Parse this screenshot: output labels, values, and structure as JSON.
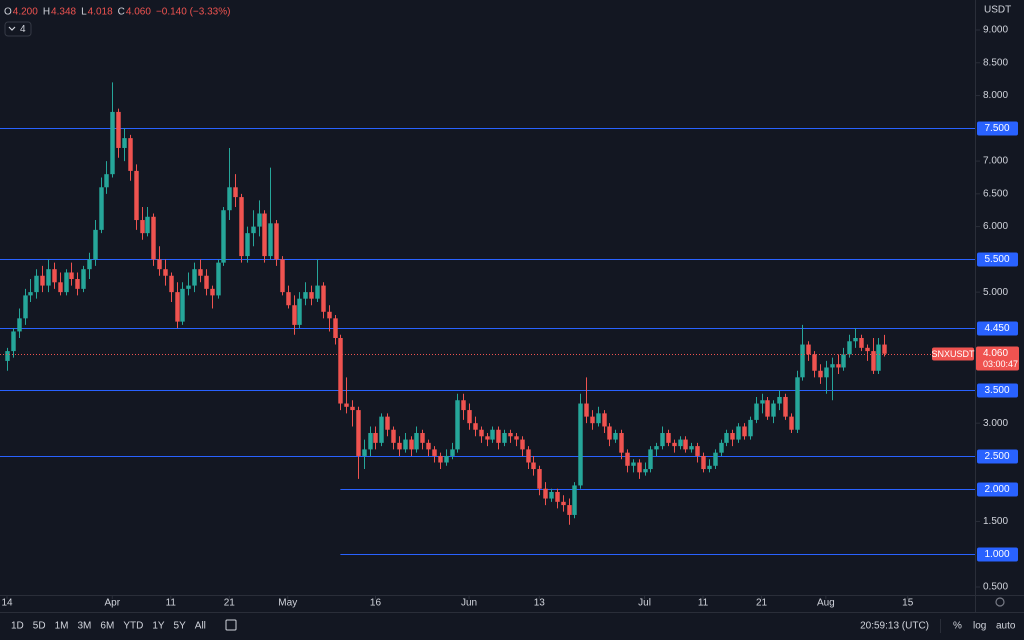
{
  "chart_data": {
    "type": "candlestick",
    "symbol": "SNXUSDT",
    "currency": "USDT",
    "up_color": "#26a69a",
    "down_color": "#ef5350",
    "line_color": "#2962ff",
    "legend": {
      "o_label": "O",
      "o": "4.200",
      "h_label": "H",
      "h": "4.348",
      "l_label": "L",
      "l": "4.018",
      "c_label": "C",
      "c": "4.060",
      "change": "−0.140 (−3.33%)",
      "indicators": "4"
    },
    "last_price_label": "4.060",
    "countdown": "03:00:47",
    "xlim": [
      -1.2,
      165.5
    ],
    "ylim": [
      0.378,
      9.458
    ],
    "yticks": [
      {
        "value": 9,
        "label": "9.000"
      },
      {
        "value": 8.5,
        "label": "8.500"
      },
      {
        "value": 8,
        "label": "8.000"
      },
      {
        "value": 7,
        "label": "7.000"
      },
      {
        "value": 6.5,
        "label": "6.500"
      },
      {
        "value": 6,
        "label": "6.000"
      },
      {
        "value": 5,
        "label": "5.000"
      },
      {
        "value": 3,
        "label": "3.000"
      },
      {
        "value": 1.5,
        "label": "1.500"
      },
      {
        "value": 0.5,
        "label": "0.500"
      }
    ],
    "xticks": [
      {
        "value": 0,
        "label": "14"
      },
      {
        "value": 18,
        "label": "Apr"
      },
      {
        "value": 28,
        "label": "11"
      },
      {
        "value": 38,
        "label": "21"
      },
      {
        "value": 48,
        "label": "May"
      },
      {
        "value": 63,
        "label": "16"
      },
      {
        "value": 79,
        "label": "Jun"
      },
      {
        "value": 91,
        "label": "13"
      },
      {
        "value": 109,
        "label": "Jul"
      },
      {
        "value": 119,
        "label": "11"
      },
      {
        "value": 129,
        "label": "21"
      },
      {
        "value": 140,
        "label": "Aug"
      },
      {
        "value": 154,
        "label": "15"
      }
    ],
    "hlines": [
      {
        "value": 7.5,
        "label": "7.500"
      },
      {
        "value": 5.5,
        "label": "5.500"
      },
      {
        "value": 4.45,
        "label": "4.450"
      },
      {
        "value": 3.5,
        "label": "3.500"
      },
      {
        "value": 2.5,
        "label": "2.500"
      },
      {
        "value": 2,
        "label": "2.000",
        "from": 57
      },
      {
        "value": 1,
        "label": "1.000",
        "from": 57
      }
    ],
    "candles": [
      [
        3.95,
        4.15,
        3.8,
        4.1
      ],
      [
        4.1,
        4.45,
        4.0,
        4.4
      ],
      [
        4.4,
        4.75,
        4.3,
        4.6
      ],
      [
        4.6,
        5.05,
        4.5,
        4.95
      ],
      [
        4.95,
        5.2,
        4.85,
        5.0
      ],
      [
        5.0,
        5.35,
        4.9,
        5.25
      ],
      [
        5.25,
        5.4,
        5.0,
        5.1
      ],
      [
        5.1,
        5.5,
        5.0,
        5.35
      ],
      [
        5.35,
        5.45,
        5.05,
        5.15
      ],
      [
        5.15,
        5.3,
        4.95,
        5.0
      ],
      [
        5.0,
        5.35,
        4.95,
        5.3
      ],
      [
        5.3,
        5.45,
        5.1,
        5.2
      ],
      [
        5.2,
        5.3,
        4.95,
        5.05
      ],
      [
        5.05,
        5.4,
        5.0,
        5.35
      ],
      [
        5.35,
        5.6,
        5.2,
        5.5
      ],
      [
        5.5,
        6.1,
        5.4,
        5.95
      ],
      [
        5.95,
        6.75,
        5.9,
        6.6
      ],
      [
        6.6,
        7.0,
        6.5,
        6.8
      ],
      [
        6.8,
        8.2,
        6.75,
        7.75
      ],
      [
        7.75,
        7.8,
        7.05,
        7.2
      ],
      [
        7.2,
        7.5,
        7.0,
        7.35
      ],
      [
        7.35,
        7.4,
        6.7,
        6.85
      ],
      [
        6.85,
        6.95,
        5.95,
        6.1
      ],
      [
        6.1,
        6.3,
        5.8,
        5.9
      ],
      [
        5.9,
        6.3,
        5.85,
        6.15
      ],
      [
        6.15,
        6.2,
        5.4,
        5.5
      ],
      [
        5.5,
        5.7,
        5.25,
        5.35
      ],
      [
        5.35,
        5.5,
        5.1,
        5.25
      ],
      [
        5.25,
        5.3,
        4.85,
        5.0
      ],
      [
        5.0,
        5.15,
        4.45,
        4.55
      ],
      [
        4.55,
        5.15,
        4.5,
        5.05
      ],
      [
        5.05,
        5.3,
        4.95,
        5.1
      ],
      [
        5.1,
        5.45,
        5.0,
        5.35
      ],
      [
        5.35,
        5.5,
        5.15,
        5.25
      ],
      [
        5.25,
        5.35,
        4.95,
        5.05
      ],
      [
        5.05,
        5.1,
        4.75,
        4.95
      ],
      [
        4.95,
        5.5,
        4.9,
        5.45
      ],
      [
        5.45,
        6.3,
        5.4,
        6.25
      ],
      [
        6.25,
        7.2,
        6.1,
        6.6
      ],
      [
        6.6,
        6.8,
        6.3,
        6.45
      ],
      [
        6.45,
        6.5,
        5.45,
        5.55
      ],
      [
        5.55,
        6.0,
        5.45,
        5.9
      ],
      [
        5.9,
        6.25,
        5.7,
        6.0
      ],
      [
        6.0,
        6.4,
        5.85,
        6.2
      ],
      [
        6.2,
        6.25,
        5.45,
        5.55
      ],
      [
        5.55,
        6.9,
        5.5,
        6.05
      ],
      [
        6.05,
        6.1,
        5.4,
        5.5
      ],
      [
        5.5,
        5.55,
        4.95,
        5.0
      ],
      [
        5.0,
        5.1,
        4.75,
        4.8
      ],
      [
        4.8,
        4.95,
        4.35,
        4.5
      ],
      [
        4.5,
        5.0,
        4.45,
        4.9
      ],
      [
        4.9,
        5.15,
        4.8,
        5.0
      ],
      [
        5.0,
        5.1,
        4.8,
        4.9
      ],
      [
        4.9,
        5.5,
        4.85,
        5.1
      ],
      [
        5.1,
        5.15,
        4.6,
        4.7
      ],
      [
        4.7,
        4.8,
        4.4,
        4.6
      ],
      [
        4.6,
        4.65,
        4.2,
        4.3
      ],
      [
        4.3,
        4.35,
        3.2,
        3.3
      ],
      [
        3.3,
        3.7,
        3.15,
        3.25
      ],
      [
        3.25,
        3.35,
        2.95,
        3.2
      ],
      [
        3.2,
        3.25,
        2.15,
        2.5
      ],
      [
        2.5,
        2.75,
        2.3,
        2.6
      ],
      [
        2.6,
        2.95,
        2.5,
        2.85
      ],
      [
        2.85,
        2.95,
        2.6,
        2.7
      ],
      [
        2.7,
        3.15,
        2.65,
        3.1
      ],
      [
        3.1,
        3.15,
        2.8,
        2.9
      ],
      [
        2.9,
        2.95,
        2.6,
        2.7
      ],
      [
        2.7,
        2.8,
        2.5,
        2.6
      ],
      [
        2.6,
        2.85,
        2.55,
        2.75
      ],
      [
        2.75,
        2.8,
        2.5,
        2.6
      ],
      [
        2.6,
        2.95,
        2.55,
        2.85
      ],
      [
        2.85,
        2.9,
        2.6,
        2.7
      ],
      [
        2.7,
        2.75,
        2.5,
        2.6
      ],
      [
        2.6,
        2.65,
        2.4,
        2.5
      ],
      [
        2.5,
        2.55,
        2.3,
        2.4
      ],
      [
        2.4,
        2.6,
        2.35,
        2.5
      ],
      [
        2.5,
        2.7,
        2.45,
        2.6
      ],
      [
        2.6,
        3.45,
        2.55,
        3.35
      ],
      [
        3.35,
        3.45,
        3.05,
        3.2
      ],
      [
        3.2,
        3.3,
        2.9,
        3.0
      ],
      [
        3.0,
        3.1,
        2.8,
        2.9
      ],
      [
        2.9,
        2.95,
        2.7,
        2.8
      ],
      [
        2.8,
        2.85,
        2.65,
        2.75
      ],
      [
        2.75,
        2.95,
        2.7,
        2.9
      ],
      [
        2.9,
        2.95,
        2.6,
        2.7
      ],
      [
        2.7,
        2.9,
        2.65,
        2.85
      ],
      [
        2.85,
        2.9,
        2.7,
        2.8
      ],
      [
        2.8,
        2.85,
        2.65,
        2.75
      ],
      [
        2.75,
        2.8,
        2.5,
        2.6
      ],
      [
        2.6,
        2.65,
        2.3,
        2.4
      ],
      [
        2.4,
        2.5,
        2.2,
        2.3
      ],
      [
        2.3,
        2.35,
        1.9,
        2.0
      ],
      [
        2.0,
        2.1,
        1.75,
        1.85
      ],
      [
        1.85,
        2.0,
        1.8,
        1.95
      ],
      [
        1.95,
        2.0,
        1.7,
        1.8
      ],
      [
        1.8,
        1.9,
        1.65,
        1.75
      ],
      [
        1.75,
        1.85,
        1.45,
        1.6
      ],
      [
        1.6,
        2.1,
        1.55,
        2.05
      ],
      [
        2.05,
        3.45,
        2.0,
        3.3
      ],
      [
        3.3,
        3.7,
        3.0,
        3.1
      ],
      [
        3.1,
        3.2,
        2.9,
        3.0
      ],
      [
        3.0,
        3.25,
        2.95,
        3.15
      ],
      [
        3.15,
        3.2,
        2.85,
        2.95
      ],
      [
        2.95,
        3.0,
        2.65,
        2.75
      ],
      [
        2.75,
        2.9,
        2.7,
        2.85
      ],
      [
        2.85,
        2.9,
        2.45,
        2.55
      ],
      [
        2.55,
        2.6,
        2.25,
        2.35
      ],
      [
        2.35,
        2.45,
        2.25,
        2.4
      ],
      [
        2.4,
        2.45,
        2.15,
        2.25
      ],
      [
        2.25,
        2.4,
        2.2,
        2.3
      ],
      [
        2.3,
        2.65,
        2.25,
        2.6
      ],
      [
        2.6,
        2.7,
        2.5,
        2.65
      ],
      [
        2.65,
        2.95,
        2.6,
        2.85
      ],
      [
        2.85,
        2.9,
        2.65,
        2.7
      ],
      [
        2.7,
        2.75,
        2.55,
        2.65
      ],
      [
        2.65,
        2.8,
        2.6,
        2.75
      ],
      [
        2.75,
        2.8,
        2.55,
        2.6
      ],
      [
        2.6,
        2.7,
        2.55,
        2.65
      ],
      [
        2.65,
        2.7,
        2.4,
        2.5
      ],
      [
        2.5,
        2.55,
        2.25,
        2.3
      ],
      [
        2.3,
        2.45,
        2.25,
        2.35
      ],
      [
        2.35,
        2.6,
        2.3,
        2.55
      ],
      [
        2.55,
        2.75,
        2.5,
        2.7
      ],
      [
        2.7,
        2.9,
        2.65,
        2.85
      ],
      [
        2.85,
        2.9,
        2.65,
        2.75
      ],
      [
        2.75,
        3.0,
        2.7,
        2.95
      ],
      [
        2.95,
        3.0,
        2.75,
        2.8
      ],
      [
        2.8,
        3.1,
        2.75,
        3.05
      ],
      [
        3.05,
        3.4,
        3.0,
        3.3
      ],
      [
        3.3,
        3.45,
        3.15,
        3.35
      ],
      [
        3.35,
        3.4,
        3.05,
        3.1
      ],
      [
        3.1,
        3.35,
        3.0,
        3.3
      ],
      [
        3.3,
        3.5,
        3.2,
        3.4
      ],
      [
        3.4,
        3.45,
        3.05,
        3.1
      ],
      [
        3.1,
        3.15,
        2.85,
        2.9
      ],
      [
        2.9,
        3.8,
        2.85,
        3.7
      ],
      [
        3.7,
        4.5,
        3.65,
        4.2
      ],
      [
        4.2,
        4.25,
        3.95,
        4.05
      ],
      [
        4.05,
        4.1,
        3.7,
        3.8
      ],
      [
        3.8,
        3.9,
        3.6,
        3.7
      ],
      [
        3.7,
        3.95,
        3.45,
        3.85
      ],
      [
        3.85,
        4.0,
        3.35,
        3.9
      ],
      [
        3.9,
        4.05,
        3.75,
        3.85
      ],
      [
        3.85,
        4.15,
        3.8,
        4.05
      ],
      [
        4.05,
        4.35,
        4.0,
        4.25
      ],
      [
        4.25,
        4.45,
        4.15,
        4.3
      ],
      [
        4.3,
        4.35,
        4.1,
        4.15
      ],
      [
        4.15,
        4.2,
        3.95,
        4.1
      ],
      [
        4.1,
        4.3,
        3.75,
        3.8
      ],
      [
        3.8,
        4.3,
        3.75,
        4.2
      ],
      [
        4.2,
        4.348,
        4.018,
        4.06
      ]
    ]
  },
  "toolbar": {
    "ranges": [
      "1D",
      "5D",
      "1M",
      "3M",
      "6M",
      "YTD",
      "1Y",
      "5Y",
      "All"
    ],
    "clock": "20:59:13 (UTC)",
    "percent": "%",
    "log": "log",
    "auto": "auto"
  }
}
